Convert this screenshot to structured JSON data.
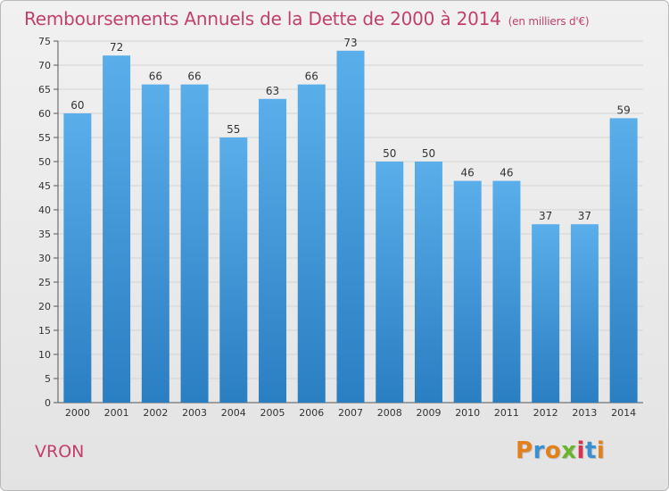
{
  "chart_data": {
    "type": "bar",
    "title": "Remboursements Annuels de la Dette de 2000 à 2014",
    "subtitle": "(en milliers d'€)",
    "xlabel": "",
    "ylabel": "",
    "categories": [
      "2000",
      "2001",
      "2002",
      "2003",
      "2004",
      "2005",
      "2006",
      "2007",
      "2008",
      "2009",
      "2010",
      "2011",
      "2012",
      "2013",
      "2014"
    ],
    "values": [
      60,
      72,
      66,
      66,
      55,
      63,
      66,
      73,
      50,
      50,
      46,
      46,
      37,
      37,
      59
    ],
    "ylim": [
      0,
      75
    ],
    "yticks": [
      0,
      5,
      10,
      15,
      20,
      25,
      30,
      35,
      40,
      45,
      50,
      55,
      60,
      65,
      70,
      75
    ],
    "grid": true,
    "bar_color": "#4a9ee0"
  },
  "footer": {
    "commune": "VRON",
    "logo_letters": [
      "P",
      "r",
      "o",
      "x",
      "i",
      "t",
      "i"
    ],
    "logo_colors": [
      "#e2811b",
      "#3a8fd0",
      "#e2811b",
      "#6ab42d",
      "#d9324d",
      "#3a8fd0",
      "#e2811b"
    ]
  }
}
